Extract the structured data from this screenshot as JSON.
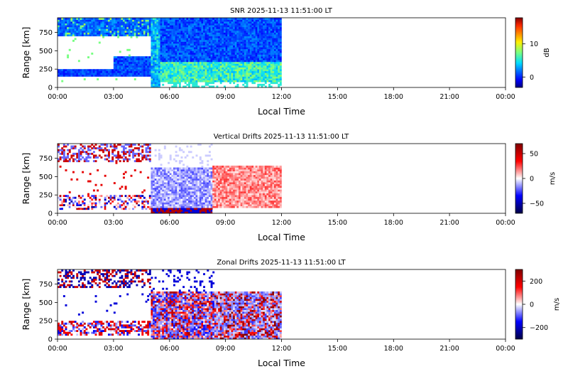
{
  "chart_data": [
    {
      "type": "heatmap",
      "title": "SNR 2025-11-13 11:51:00 LT",
      "xlabel": "Local Time",
      "ylabel": "Range [km]",
      "xlim": [
        0,
        24
      ],
      "ylim": [
        0,
        950
      ],
      "x_ticks": [
        0,
        3,
        6,
        9,
        12,
        15,
        18,
        21,
        24
      ],
      "x_tick_labels": [
        "00:00",
        "03:00",
        "06:00",
        "09:00",
        "12:00",
        "15:00",
        "18:00",
        "21:00",
        "00:00"
      ],
      "y_ticks": [
        0,
        250,
        500,
        750
      ],
      "y_tick_labels": [
        "0",
        "250",
        "500",
        "750"
      ],
      "data_extent_hours": [
        0,
        12
      ],
      "colormap": "jet",
      "colorbar": {
        "label": "dB",
        "range": [
          -3,
          18
        ],
        "ticks": [
          0,
          10
        ],
        "tick_labels": [
          "0",
          "10"
        ]
      },
      "seed": 11,
      "grid": false
    },
    {
      "type": "heatmap",
      "title": "Vertical Drifts 2025-11-13 11:51:00 LT",
      "xlabel": "Local Time",
      "ylabel": "Range [km]",
      "xlim": [
        0,
        24
      ],
      "ylim": [
        0,
        950
      ],
      "x_ticks": [
        0,
        3,
        6,
        9,
        12,
        15,
        18,
        21,
        24
      ],
      "x_tick_labels": [
        "00:00",
        "03:00",
        "06:00",
        "09:00",
        "12:00",
        "15:00",
        "18:00",
        "21:00",
        "00:00"
      ],
      "y_ticks": [
        0,
        250,
        500,
        750
      ],
      "y_tick_labels": [
        "0",
        "250",
        "500",
        "750"
      ],
      "data_extent_hours": [
        0,
        12
      ],
      "colormap": "seismic",
      "colorbar": {
        "label": "m/s",
        "range": [
          -70,
          70
        ],
        "ticks": [
          50,
          0,
          -50
        ],
        "tick_labels": [
          "50",
          "0",
          "−50"
        ]
      },
      "seed": 23,
      "grid": false
    },
    {
      "type": "heatmap",
      "title": "Zonal Drifts 2025-11-13 11:51:00 LT",
      "xlabel": "Local Time",
      "ylabel": "Range [km]",
      "xlim": [
        0,
        24
      ],
      "ylim": [
        0,
        950
      ],
      "x_ticks": [
        0,
        3,
        6,
        9,
        12,
        15,
        18,
        21,
        24
      ],
      "x_tick_labels": [
        "00:00",
        "03:00",
        "06:00",
        "09:00",
        "12:00",
        "15:00",
        "18:00",
        "21:00",
        "00:00"
      ],
      "y_ticks": [
        0,
        250,
        500,
        750
      ],
      "y_tick_labels": [
        "0",
        "250",
        "500",
        "750"
      ],
      "data_extent_hours": [
        0,
        12
      ],
      "colormap": "seismic",
      "colorbar": {
        "label": "m/s",
        "range": [
          -300,
          300
        ],
        "ticks": [
          200,
          0,
          -200
        ],
        "tick_labels": [
          "200",
          "0",
          "−200"
        ]
      },
      "seed": 37,
      "grid": false
    }
  ]
}
